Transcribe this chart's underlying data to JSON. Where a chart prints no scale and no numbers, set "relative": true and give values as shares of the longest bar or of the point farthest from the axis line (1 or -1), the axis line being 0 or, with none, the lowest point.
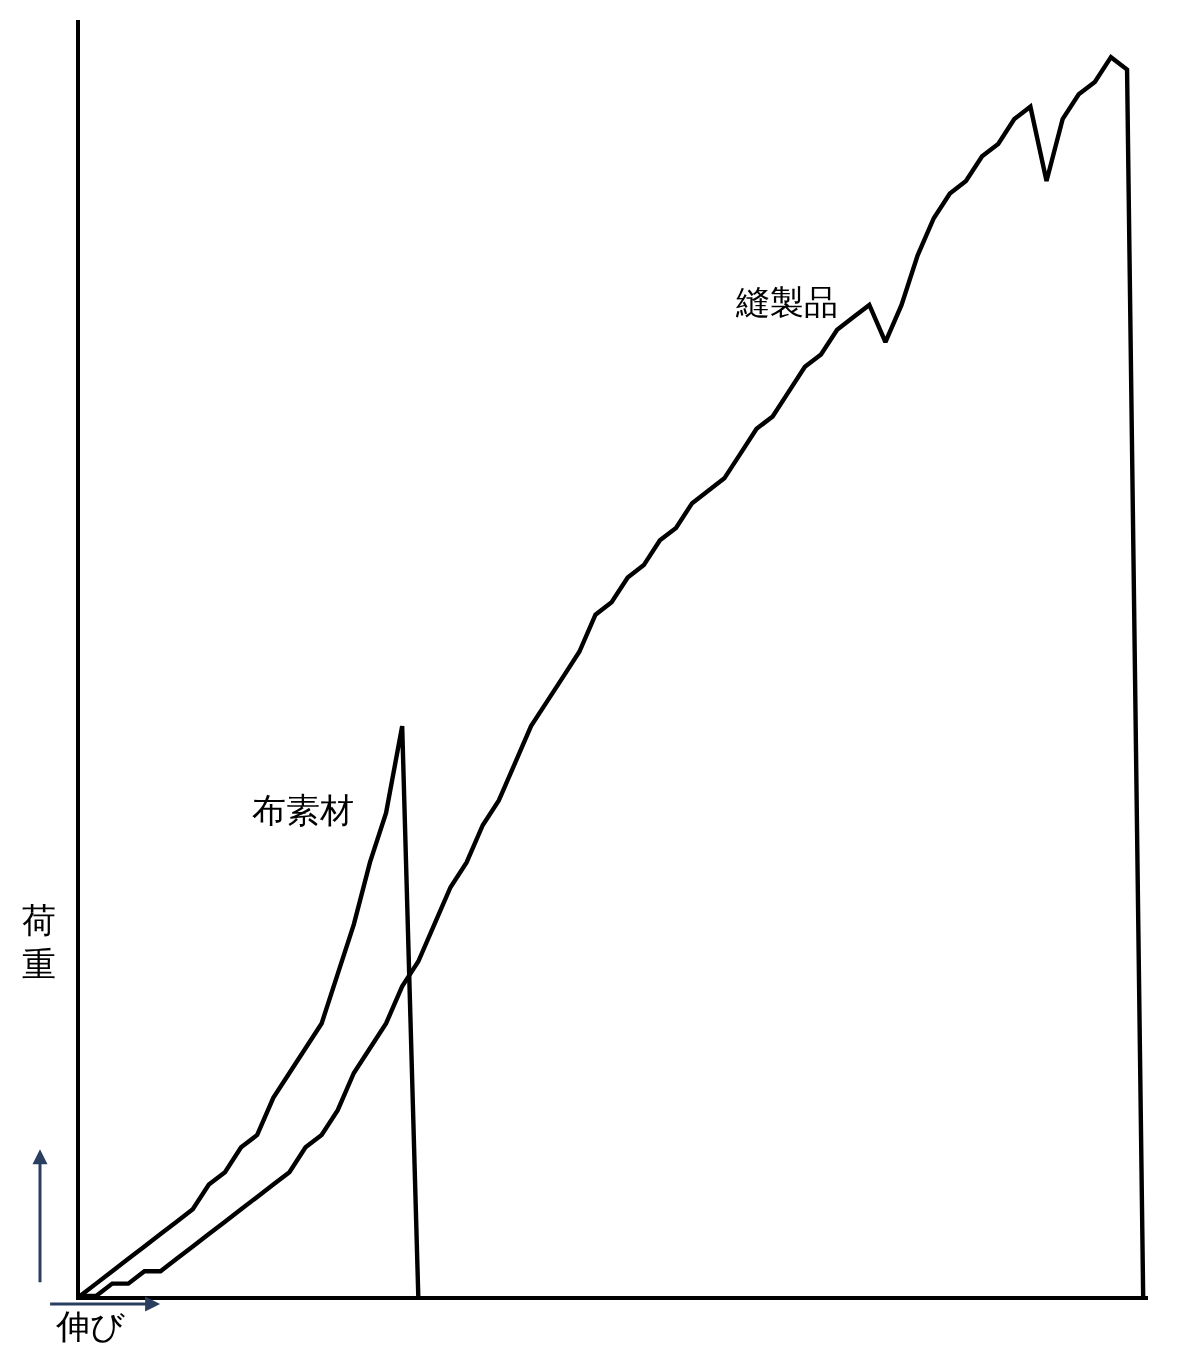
{
  "chart_data": {
    "type": "line",
    "relative": true,
    "xlabel": "伸び",
    "ylabel": "荷重",
    "categories": [
      null,
      null,
      null,
      null,
      null,
      null,
      null,
      null,
      null,
      null,
      null,
      null,
      null,
      null,
      null,
      null,
      null,
      null,
      null,
      null,
      null,
      null,
      null,
      null,
      null,
      null,
      null,
      null,
      null,
      null,
      null,
      null,
      null,
      null,
      null,
      null,
      null,
      null,
      null,
      null,
      null,
      null,
      null,
      null,
      null,
      null,
      null,
      null,
      null,
      null,
      null,
      null,
      null,
      null,
      null,
      null,
      null,
      null,
      null,
      null,
      null,
      null,
      null,
      null,
      null,
      null,
      null
    ],
    "series": [
      {
        "name": "布素材",
        "color": "#000000",
        "values": [
          0,
          0.01,
          0.02,
          0.03,
          0.04,
          0.05,
          0.06,
          0.07,
          0.09,
          0.1,
          0.12,
          0.13,
          0.16,
          0.18,
          0.2,
          0.22,
          0.26,
          0.3,
          0.35,
          0.39,
          0.46,
          0,
          null,
          null,
          null,
          null,
          null,
          null,
          null,
          null,
          null,
          null,
          null,
          null,
          null,
          null,
          null,
          null,
          null,
          null,
          null,
          null,
          null,
          null,
          null,
          null,
          null,
          null,
          null,
          null,
          null,
          null,
          null,
          null,
          null,
          null,
          null,
          null,
          null,
          null,
          null,
          null,
          null,
          null,
          null,
          null,
          null
        ]
      },
      {
        "name": "縫製品",
        "color": "#000000",
        "values": [
          0,
          0,
          0.01,
          0.01,
          0.02,
          0.02,
          0.03,
          0.04,
          0.05,
          0.06,
          0.07,
          0.08,
          0.09,
          0.1,
          0.12,
          0.13,
          0.15,
          0.18,
          0.2,
          0.22,
          0.25,
          0.27,
          0.3,
          0.33,
          0.35,
          0.38,
          0.4,
          0.43,
          0.46,
          0.48,
          0.5,
          0.52,
          0.55,
          0.56,
          0.58,
          0.59,
          0.61,
          0.62,
          0.64,
          0.65,
          0.66,
          0.68,
          0.7,
          0.71,
          0.73,
          0.75,
          0.76,
          0.78,
          0.79,
          0.8,
          0.77,
          0.8,
          0.84,
          0.87,
          0.89,
          0.9,
          0.92,
          0.93,
          0.95,
          0.96,
          0.9,
          0.95,
          0.97,
          0.98,
          1,
          0.99,
          0
        ]
      }
    ],
    "marker": "none",
    "line_style": "solid",
    "legend": false
  }
}
